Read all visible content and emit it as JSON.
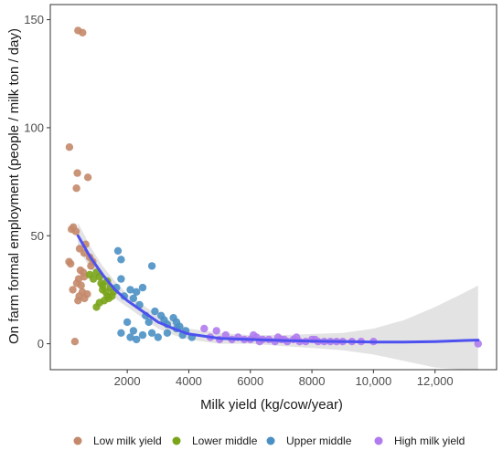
{
  "chart_data": {
    "type": "scatter",
    "xlabel": "Milk yield (kg/cow/year)",
    "ylabel": "On farm formal employment (people / milk ton / day)",
    "xlim": [
      -500,
      14000
    ],
    "ylim": [
      -12,
      157
    ],
    "x_ticks": [
      {
        "value": 2000,
        "label": "2000"
      },
      {
        "value": 4000,
        "label": "4000"
      },
      {
        "value": 6000,
        "label": "6000"
      },
      {
        "value": 8000,
        "label": "8000"
      },
      {
        "value": 10000,
        "label": "10,000"
      },
      {
        "value": 12000,
        "label": "12,000"
      }
    ],
    "y_ticks": [
      {
        "value": 0,
        "label": "0"
      },
      {
        "value": 50,
        "label": "50"
      },
      {
        "value": 100,
        "label": "100"
      },
      {
        "value": 150,
        "label": "150"
      }
    ],
    "grid": false,
    "legend_position": "bottom",
    "series": [
      {
        "name": "Low milk yield",
        "color": "#c4886a",
        "points": [
          [
            400,
            145
          ],
          [
            550,
            144
          ],
          [
            120,
            91
          ],
          [
            380,
            79
          ],
          [
            720,
            77
          ],
          [
            350,
            72
          ],
          [
            250,
            54
          ],
          [
            190,
            53
          ],
          [
            330,
            52
          ],
          [
            110,
            38
          ],
          [
            160,
            37
          ],
          [
            480,
            34
          ],
          [
            570,
            33
          ],
          [
            600,
            31
          ],
          [
            420,
            30
          ],
          [
            360,
            28
          ],
          [
            500,
            27
          ],
          [
            230,
            25
          ],
          [
            540,
            24
          ],
          [
            700,
            23
          ],
          [
            440,
            22
          ],
          [
            610,
            21
          ],
          [
            400,
            20
          ],
          [
            300,
            1
          ],
          [
            450,
            44
          ],
          [
            600,
            42
          ],
          [
            650,
            46
          ],
          [
            780,
            40
          ],
          [
            820,
            36
          ],
          [
            880,
            38
          ]
        ]
      },
      {
        "name": "Lower middle",
        "color": "#7aa41a",
        "points": [
          [
            780,
            32
          ],
          [
            900,
            30
          ],
          [
            1000,
            33
          ],
          [
            1100,
            31
          ],
          [
            1150,
            28
          ],
          [
            1200,
            25
          ],
          [
            1300,
            24
          ],
          [
            1350,
            22
          ],
          [
            1250,
            20
          ],
          [
            1400,
            21
          ],
          [
            1100,
            19
          ],
          [
            1000,
            17
          ],
          [
            1500,
            22
          ],
          [
            1450,
            26
          ],
          [
            1350,
            29
          ],
          [
            1200,
            27
          ],
          [
            1550,
            24
          ]
        ]
      },
      {
        "name": "Upper middle",
        "color": "#4b90c4",
        "points": [
          [
            1700,
            43
          ],
          [
            1800,
            39
          ],
          [
            1800,
            30
          ],
          [
            1650,
            26
          ],
          [
            2500,
            26
          ],
          [
            2800,
            36
          ],
          [
            1900,
            22
          ],
          [
            2100,
            25
          ],
          [
            2200,
            21
          ],
          [
            2300,
            24
          ],
          [
            2400,
            18
          ],
          [
            2600,
            13
          ],
          [
            2700,
            10
          ],
          [
            2900,
            15
          ],
          [
            3100,
            13
          ],
          [
            3200,
            11
          ],
          [
            3300,
            9
          ],
          [
            3500,
            12
          ],
          [
            3600,
            10
          ],
          [
            3700,
            8
          ],
          [
            3900,
            6
          ],
          [
            2000,
            10
          ],
          [
            2200,
            6
          ],
          [
            2500,
            4
          ],
          [
            2800,
            5
          ],
          [
            3000,
            3
          ],
          [
            3300,
            5
          ],
          [
            3600,
            7
          ],
          [
            3800,
            4
          ],
          [
            1800,
            5
          ],
          [
            2100,
            3
          ],
          [
            2300,
            2
          ],
          [
            4100,
            3
          ]
        ]
      },
      {
        "name": "High milk yield",
        "color": "#b07bee",
        "points": [
          [
            4500,
            7
          ],
          [
            4900,
            6
          ],
          [
            5200,
            4
          ],
          [
            5600,
            3
          ],
          [
            5800,
            2
          ],
          [
            6000,
            2
          ],
          [
            6200,
            3
          ],
          [
            6400,
            2
          ],
          [
            6600,
            2
          ],
          [
            6800,
            1
          ],
          [
            7000,
            2
          ],
          [
            7200,
            1
          ],
          [
            7400,
            2
          ],
          [
            7600,
            1
          ],
          [
            7800,
            1
          ],
          [
            8000,
            2
          ],
          [
            8200,
            1
          ],
          [
            8400,
            1
          ],
          [
            8600,
            1
          ],
          [
            8800,
            1
          ],
          [
            9000,
            1
          ],
          [
            9300,
            1
          ],
          [
            9600,
            1
          ],
          [
            10000,
            1
          ],
          [
            4700,
            3
          ],
          [
            5000,
            2
          ],
          [
            5400,
            2
          ],
          [
            6100,
            4
          ],
          [
            6300,
            1
          ],
          [
            6900,
            3
          ],
          [
            7100,
            2
          ],
          [
            7500,
            3
          ],
          [
            8100,
            2
          ],
          [
            13400,
            0
          ]
        ]
      }
    ],
    "trend": {
      "color": "#4d51f0",
      "band_color": "#d9d9d9",
      "points": [
        [
          400,
          50
        ],
        [
          800,
          40
        ],
        [
          1200,
          32
        ],
        [
          1600,
          25
        ],
        [
          2000,
          20
        ],
        [
          2500,
          15
        ],
        [
          3000,
          10
        ],
        [
          3500,
          7
        ],
        [
          4000,
          4.5
        ],
        [
          5000,
          2.5
        ],
        [
          6000,
          2
        ],
        [
          7000,
          1.5
        ],
        [
          8000,
          1.2
        ],
        [
          9000,
          1
        ],
        [
          10000,
          0.8
        ],
        [
          11000,
          0.8
        ],
        [
          12000,
          1
        ],
        [
          13000,
          1.5
        ],
        [
          13400,
          1.7
        ]
      ],
      "upper": [
        [
          400,
          56
        ],
        [
          800,
          45
        ],
        [
          1200,
          36
        ],
        [
          1600,
          29
        ],
        [
          2000,
          23
        ],
        [
          2500,
          18
        ],
        [
          3000,
          13
        ],
        [
          3500,
          10
        ],
        [
          4000,
          7
        ],
        [
          5000,
          5
        ],
        [
          6000,
          4
        ],
        [
          7000,
          4
        ],
        [
          8000,
          4.5
        ],
        [
          9000,
          5
        ],
        [
          10000,
          7
        ],
        [
          11000,
          11
        ],
        [
          12000,
          17
        ],
        [
          13000,
          24
        ],
        [
          13400,
          27
        ]
      ],
      "lower": [
        [
          400,
          44
        ],
        [
          800,
          35
        ],
        [
          1200,
          28
        ],
        [
          1600,
          21
        ],
        [
          2000,
          17
        ],
        [
          2500,
          12
        ],
        [
          3000,
          7
        ],
        [
          3500,
          4
        ],
        [
          4000,
          2
        ],
        [
          5000,
          0
        ],
        [
          6000,
          0
        ],
        [
          7000,
          -1
        ],
        [
          8000,
          -2
        ],
        [
          9000,
          -3
        ],
        [
          10000,
          -5
        ],
        [
          11000,
          -8
        ],
        [
          12000,
          -11
        ],
        [
          13000,
          -12
        ],
        [
          13400,
          -12
        ]
      ]
    }
  }
}
